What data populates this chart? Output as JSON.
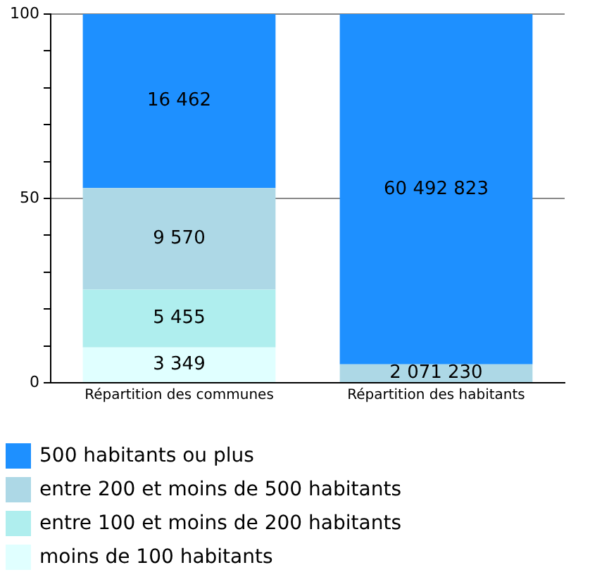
{
  "chart_data": {
    "type": "bar",
    "stacked": true,
    "categories": [
      "Répartition des communes",
      "Répartition des habitants"
    ],
    "series": [
      {
        "name": "moins de 100 habitants",
        "color": "#e0ffff",
        "values": [
          9.6,
          null
        ]
      },
      {
        "name": "entre 100 et moins de 200 habitants",
        "color": "#afeeee",
        "values": [
          15.7,
          null
        ]
      },
      {
        "name": "entre 200 et moins de 500 habitants",
        "color": "#add8e6",
        "values": [
          27.5,
          5
        ]
      },
      {
        "name": "500 habitants ou plus",
        "color": "#1e90ff",
        "values": [
          47.2,
          95
        ]
      }
    ],
    "annotations": [
      "3 349",
      "5 455",
      "9 570",
      "16 462",
      "2 071 230",
      "60 492 823"
    ],
    "ylim": [
      0,
      100
    ],
    "yticks": [
      0,
      {
        "value": 10,
        "label": null
      },
      {
        "value": 20,
        "label": null
      },
      {
        "value": 30,
        "label": null
      },
      {
        "value": 40,
        "label": null
      },
      50,
      {
        "value": 60,
        "label": null
      },
      {
        "value": 70,
        "label": null
      },
      {
        "value": 80,
        "label": null
      },
      {
        "value": 90,
        "label": null
      },
      100
    ],
    "grid": "y",
    "legend": "bottom"
  }
}
